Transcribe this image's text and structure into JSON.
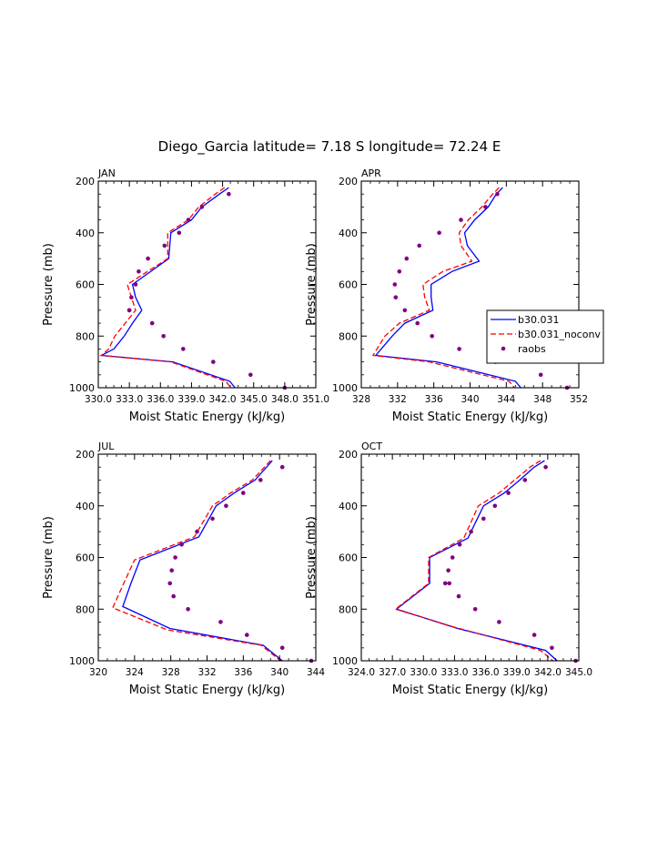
{
  "title": "Diego_Garcia  latitude= 7.18 S longitude= 72.24 E",
  "colors": {
    "b30": "#0000ff",
    "noconv": "#ff0000",
    "raobs": "#800080",
    "axis": "#000000"
  },
  "legend": {
    "entries": [
      {
        "label": "b30.031",
        "style": "solid",
        "color": "#0000ff"
      },
      {
        "label": "b30.031_noconv",
        "style": "dashed",
        "color": "#ff0000"
      },
      {
        "label": "raobs",
        "style": "marker",
        "color": "#800080"
      }
    ]
  },
  "chart_data": [
    {
      "type": "line",
      "panel": "JAN",
      "xlabel": "Moist Static Energy (kJ/kg)",
      "ylabel": "Pressure (mb)",
      "xlim": [
        330.0,
        351.0
      ],
      "ylim": [
        1000,
        200
      ],
      "xticks": [
        330.0,
        333.0,
        336.0,
        339.0,
        342.0,
        345.0,
        348.0,
        351.0
      ],
      "xtick_labels": [
        "330.0",
        "333.0",
        "336.0",
        "339.0",
        "342.0",
        "345.0",
        "348.0",
        "351.0"
      ],
      "yticks": [
        200,
        400,
        600,
        800,
        1000
      ],
      "series": [
        {
          "name": "b30.031",
          "style": "solid",
          "x": [
            342.6,
            341.7,
            340.0,
            339.0,
            337.0,
            336.8,
            333.3,
            333.6,
            334.2,
            333.3,
            332.5,
            331.5,
            330.3,
            337.2,
            342.7,
            343.2
          ],
          "y": [
            225,
            250,
            300,
            350,
            400,
            500,
            600,
            650,
            700,
            750,
            800,
            850,
            875,
            900,
            975,
            1000
          ]
        },
        {
          "name": "b30.031_noconv",
          "style": "dashed",
          "x": [
            342.2,
            341.3,
            339.7,
            338.7,
            336.7,
            336.7,
            332.8,
            333.2,
            333.6,
            332.6,
            331.6,
            331.0,
            330.3,
            337.0,
            342.3,
            342.8
          ],
          "y": [
            225,
            250,
            300,
            350,
            400,
            500,
            600,
            650,
            700,
            750,
            800,
            850,
            875,
            900,
            975,
            1000
          ]
        },
        {
          "name": "raobs",
          "style": "marker",
          "x": [
            342.6,
            340.0,
            338.7,
            337.8,
            336.4,
            334.8,
            333.9,
            333.6,
            333.2,
            333.0,
            333.0,
            335.2,
            336.3,
            338.2,
            341.1,
            344.7,
            348.0
          ],
          "y": [
            250,
            300,
            350,
            400,
            450,
            500,
            550,
            600,
            650,
            700,
            700,
            750,
            800,
            850,
            900,
            950,
            1000
          ]
        }
      ]
    },
    {
      "type": "line",
      "panel": "APR",
      "xlabel": "Moist Static Energy (kJ/kg)",
      "ylabel": "Pressure (mb)",
      "xlim": [
        328,
        352
      ],
      "ylim": [
        1000,
        200
      ],
      "xticks": [
        328,
        332,
        336,
        340,
        344,
        348,
        352
      ],
      "xtick_labels": [
        "328",
        "332",
        "336",
        "340",
        "344",
        "348",
        "352"
      ],
      "yticks": [
        200,
        400,
        600,
        800,
        1000
      ],
      "series": [
        {
          "name": "b30.031",
          "style": "solid",
          "x": [
            343.6,
            342.9,
            342.0,
            340.5,
            339.4,
            339.7,
            341.0,
            338.0,
            335.7,
            335.7,
            335.9,
            332.8,
            331.4,
            329.6,
            336.3,
            345.0,
            345.6
          ],
          "y": [
            225,
            250,
            300,
            350,
            400,
            450,
            510,
            550,
            600,
            650,
            700,
            750,
            800,
            875,
            900,
            975,
            1000
          ]
        },
        {
          "name": "b30.031_noconv",
          "style": "dashed",
          "x": [
            343.2,
            342.5,
            341.3,
            339.8,
            338.8,
            339.0,
            340.2,
            337.0,
            334.8,
            335.0,
            335.5,
            332.2,
            330.6,
            329.3,
            335.5,
            344.3,
            344.9
          ],
          "y": [
            225,
            250,
            300,
            350,
            400,
            450,
            510,
            550,
            600,
            650,
            700,
            750,
            800,
            875,
            900,
            975,
            1000
          ]
        },
        {
          "name": "raobs",
          "style": "marker",
          "x": [
            343.0,
            341.7,
            339.0,
            336.6,
            334.4,
            333.0,
            332.2,
            331.7,
            331.8,
            332.8,
            334.2,
            335.8,
            338.8,
            342.8,
            347.8,
            350.7
          ],
          "y": [
            250,
            300,
            350,
            400,
            450,
            500,
            550,
            600,
            650,
            700,
            750,
            800,
            850,
            900,
            950,
            1000
          ]
        }
      ]
    },
    {
      "type": "line",
      "panel": "JUL",
      "xlabel": "Moist Static Energy (kJ/kg)",
      "ylabel": "Pressure (mb)",
      "xlim": [
        320,
        344
      ],
      "ylim": [
        1000,
        200
      ],
      "xticks": [
        320,
        324,
        328,
        332,
        336,
        340,
        344
      ],
      "xtick_labels": [
        "320",
        "324",
        "328",
        "332",
        "336",
        "340",
        "344"
      ],
      "yticks": [
        200,
        400,
        600,
        800,
        1000
      ],
      "series": [
        {
          "name": "b30.031",
          "style": "solid",
          "x": [
            339.2,
            337.3,
            335.0,
            333.0,
            331.1,
            324.6,
            323.6,
            322.7,
            327.9,
            338.2,
            340.3
          ],
          "y": [
            225,
            300,
            350,
            400,
            520,
            610,
            700,
            790,
            875,
            940,
            1000
          ]
        },
        {
          "name": "b30.031_noconv",
          "style": "dashed",
          "x": [
            339.0,
            337.0,
            334.6,
            332.6,
            330.6,
            324.0,
            322.8,
            321.6,
            327.6,
            338.0,
            340.1
          ],
          "y": [
            225,
            300,
            350,
            400,
            520,
            610,
            700,
            795,
            880,
            940,
            1000
          ]
        },
        {
          "name": "raobs",
          "style": "marker",
          "x": [
            340.3,
            337.9,
            336.0,
            334.1,
            332.6,
            330.9,
            329.2,
            328.5,
            328.1,
            327.9,
            328.3,
            329.9,
            333.5,
            336.4,
            340.3,
            343.5
          ],
          "y": [
            250,
            300,
            350,
            400,
            450,
            500,
            550,
            600,
            650,
            700,
            750,
            800,
            850,
            900,
            950,
            1000
          ]
        }
      ]
    },
    {
      "type": "line",
      "panel": "OCT",
      "xlabel": "Moist Static Energy (kJ/kg)",
      "ylabel": "Pressure (mb)",
      "xlim": [
        324.0,
        345.0
      ],
      "ylim": [
        1000,
        200
      ],
      "xticks": [
        324.0,
        327.0,
        330.0,
        333.0,
        336.0,
        339.0,
        342.0,
        345.0
      ],
      "xtick_labels": [
        "324.0",
        "327.0",
        "330.0",
        "333.0",
        "336.0",
        "339.0",
        "342.0",
        "345.0"
      ],
      "yticks": [
        200,
        400,
        600,
        800,
        1000
      ],
      "series": [
        {
          "name": "b30.031",
          "style": "solid",
          "x": [
            341.7,
            340.7,
            339.3,
            337.8,
            335.8,
            334.3,
            330.6,
            330.6,
            330.6,
            327.4,
            333.3,
            341.8,
            342.9
          ],
          "y": [
            225,
            250,
            300,
            350,
            400,
            525,
            600,
            650,
            700,
            800,
            875,
            960,
            1000
          ]
        },
        {
          "name": "b30.031_noconv",
          "style": "dashed",
          "x": [
            341.3,
            340.3,
            338.8,
            337.3,
            335.3,
            333.9,
            330.5,
            330.5,
            330.5,
            327.3,
            333.0,
            341.3,
            342.5
          ],
          "y": [
            225,
            250,
            300,
            350,
            400,
            525,
            600,
            650,
            700,
            800,
            870,
            960,
            1000
          ]
        },
        {
          "name": "raobs",
          "style": "marker",
          "x": [
            341.8,
            339.8,
            338.2,
            336.9,
            335.8,
            334.6,
            333.5,
            332.8,
            332.4,
            332.1,
            332.5,
            333.4,
            335.0,
            337.3,
            340.7,
            342.4,
            344.7
          ],
          "y": [
            250,
            300,
            350,
            400,
            450,
            500,
            550,
            600,
            650,
            700,
            700,
            750,
            800,
            850,
            900,
            950,
            1000
          ]
        }
      ]
    }
  ]
}
